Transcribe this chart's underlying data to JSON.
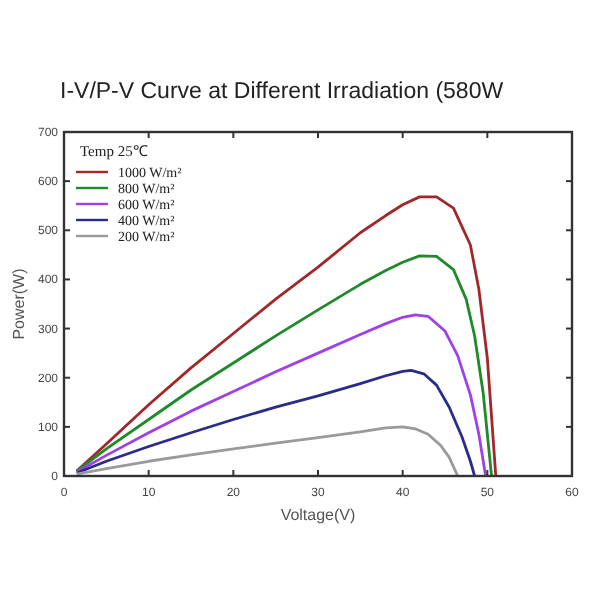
{
  "chart_data": {
    "type": "line",
    "title": "I-V/P-V Curve at Different Irradiation (580W",
    "xlabel": "Voltage(V)",
    "ylabel": "Power(W)",
    "legend_title": "Temp 25℃",
    "legend": "top left",
    "grid": false,
    "xlim": [
      0,
      60
    ],
    "xticks": [
      0,
      10,
      20,
      30,
      40,
      50,
      60
    ],
    "ylim": [
      0,
      700
    ],
    "yticks": [
      0,
      100,
      200,
      300,
      400,
      500,
      600,
      700
    ],
    "series": [
      {
        "name": "1000 W/m²",
        "color": "#a0282a",
        "x": [
          1.5,
          5,
          10,
          15,
          20,
          25,
          30,
          35,
          38,
          40,
          42,
          44,
          46,
          48,
          49,
          50,
          51
        ],
        "values": [
          10,
          65,
          145,
          220,
          290,
          360,
          425,
          495,
          530,
          552,
          568,
          568,
          545,
          470,
          380,
          240,
          0
        ]
      },
      {
        "name": "800 W/m²",
        "color": "#1f8a2a",
        "x": [
          1.5,
          5,
          10,
          15,
          20,
          25,
          30,
          35,
          38,
          40,
          42,
          44,
          46,
          47.5,
          48.5,
          49.5,
          50.5
        ],
        "values": [
          10,
          55,
          115,
          175,
          230,
          285,
          338,
          390,
          418,
          435,
          448,
          447,
          420,
          360,
          285,
          170,
          0
        ]
      },
      {
        "name": "600 W/m²",
        "color": "#a040e8",
        "x": [
          1.5,
          5,
          10,
          15,
          20,
          25,
          30,
          35,
          38,
          40,
          41.5,
          43,
          45,
          46.5,
          48,
          49,
          49.8
        ],
        "values": [
          8,
          42,
          88,
          132,
          172,
          212,
          250,
          288,
          310,
          323,
          328,
          325,
          295,
          245,
          165,
          85,
          0
        ]
      },
      {
        "name": "400 W/m²",
        "color": "#2a2c8c",
        "x": [
          1.5,
          5,
          10,
          15,
          20,
          25,
          30,
          35,
          38,
          40,
          41,
          42.5,
          44,
          45.5,
          47,
          48,
          48.5
        ],
        "values": [
          6,
          30,
          60,
          88,
          115,
          140,
          163,
          188,
          204,
          213,
          215,
          208,
          185,
          140,
          80,
          30,
          0
        ]
      },
      {
        "name": "200 W/m²",
        "color": "#9a9a9a",
        "x": [
          1.5,
          5,
          10,
          15,
          20,
          25,
          30,
          35,
          38,
          40,
          41.5,
          43,
          44.5,
          45.5,
          46.5
        ],
        "values": [
          4,
          15,
          30,
          43,
          55,
          67,
          78,
          90,
          98,
          100,
          96,
          85,
          62,
          38,
          0
        ]
      }
    ]
  }
}
